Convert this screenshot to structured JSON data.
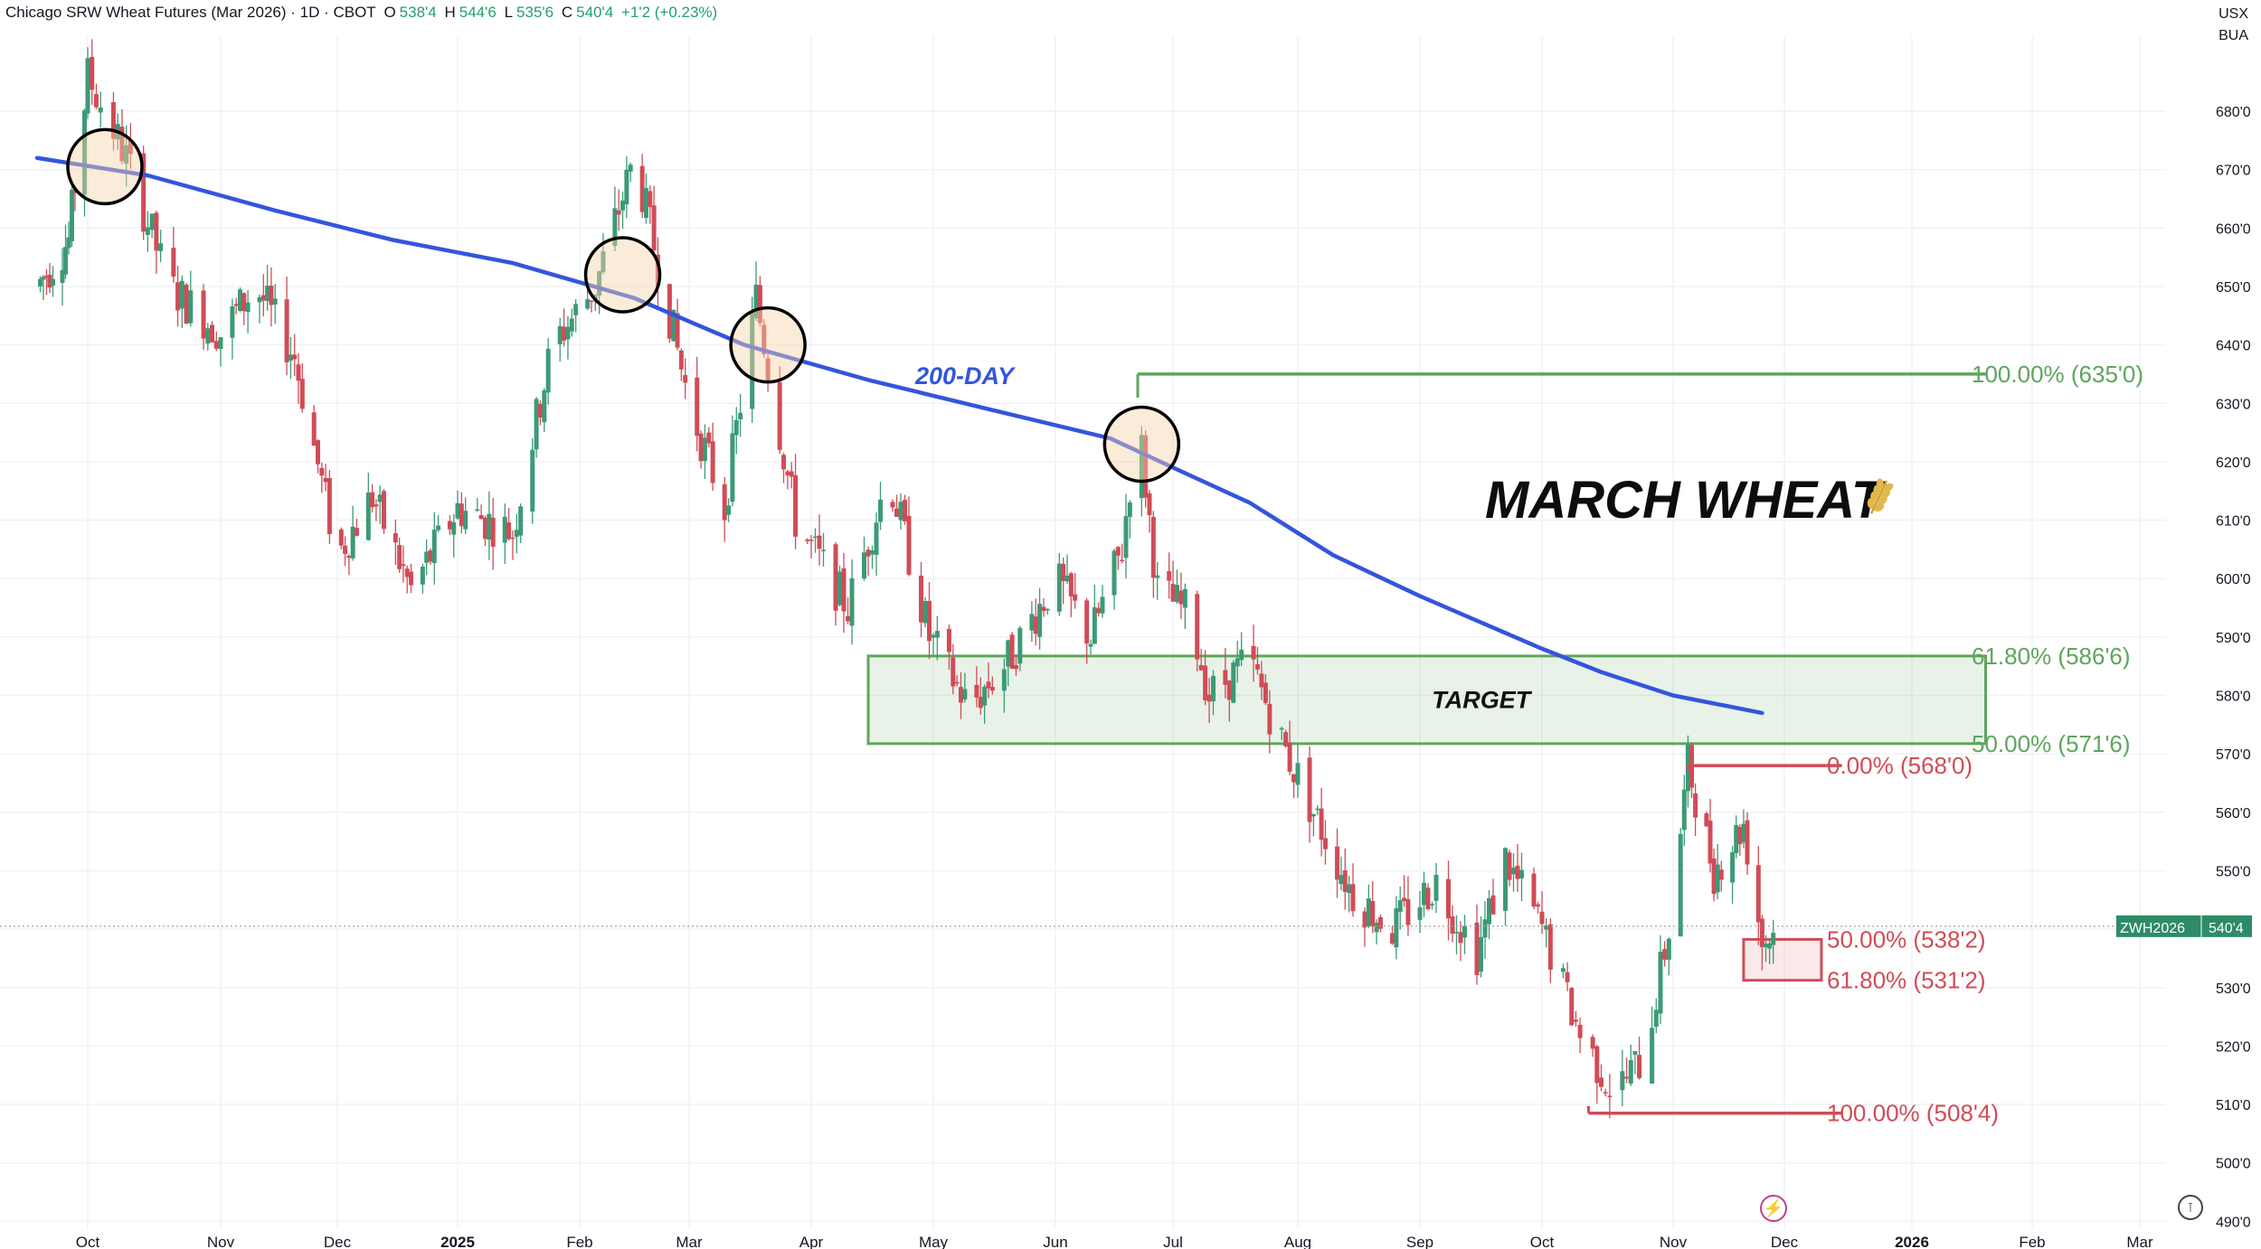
{
  "header": {
    "title": "Chicago SRW Wheat Futures (Mar 2026) · 1D · CBOT",
    "open_label": "O",
    "open": "538'4",
    "high_label": "H",
    "high": "544'6",
    "low_label": "L",
    "low": "535'6",
    "close_label": "C",
    "close": "540'4",
    "change": "+1'2 (+0.23%)"
  },
  "top_right": {
    "unit": "USX",
    "unit2": "BUA"
  },
  "price_tag": {
    "symbol": "ZWH2026",
    "price": "540'4"
  },
  "icons": {
    "bottom_center": "flash-icon",
    "bottom_right": "currency-icon"
  },
  "chart_data": {
    "type": "candlestick",
    "y_tick_labels": [
      "680'0",
      "670'0",
      "660'0",
      "650'0",
      "640'0",
      "630'0",
      "620'0",
      "610'0",
      "600'0",
      "590'0",
      "580'0",
      "570'0",
      "560'0",
      "550'0",
      "540'0",
      "530'0",
      "520'0",
      "510'0",
      "500'0",
      "490'0"
    ],
    "y_ticks": [
      680,
      670,
      660,
      650,
      640,
      630,
      620,
      610,
      600,
      590,
      580,
      570,
      560,
      550,
      540,
      530,
      520,
      510,
      500,
      490
    ],
    "ylim": [
      490,
      690
    ],
    "x_tick_labels": [
      "Oct",
      "Nov",
      "Dec",
      "2025",
      "Feb",
      "Mar",
      "Apr",
      "May",
      "Jun",
      "Jul",
      "Aug",
      "Sep",
      "Oct",
      "Nov",
      "Dec",
      "2026",
      "Feb",
      "Mar"
    ],
    "x_tick_dates": [
      "2024-10-01",
      "2024-11-01",
      "2024-12-01",
      "2025-01-01",
      "2025-02-01",
      "2025-03-01",
      "2025-04-01",
      "2025-05-01",
      "2025-06-01",
      "2025-07-01",
      "2025-08-01",
      "2025-09-01",
      "2025-10-01",
      "2025-11-01",
      "2025-12-01",
      "2026-01-01",
      "2026-02-01",
      "2026-03-01"
    ],
    "bold_x_ticks": [
      "2025",
      "2026"
    ],
    "last_price": 540.5,
    "ma200_label": "200-DAY",
    "ma200_color": "#3355dd",
    "ma200": [
      [
        "2024-09-15",
        672
      ],
      [
        "2024-10-15",
        669
      ],
      [
        "2024-11-15",
        663
      ],
      [
        "2024-12-15",
        658
      ],
      [
        "2025-01-15",
        654
      ],
      [
        "2025-02-15",
        648
      ],
      [
        "2025-03-15",
        640
      ],
      [
        "2025-04-15",
        634
      ],
      [
        "2025-05-15",
        629
      ],
      [
        "2025-06-15",
        624
      ],
      [
        "2025-07-01",
        619
      ],
      [
        "2025-07-20",
        613
      ],
      [
        "2025-08-10",
        604
      ],
      [
        "2025-09-01",
        597
      ],
      [
        "2025-10-01",
        588
      ],
      [
        "2025-10-15",
        584
      ],
      [
        "2025-11-01",
        580
      ],
      [
        "2025-11-25",
        577
      ]
    ],
    "candles_ohlc_pivots": [
      [
        "2024-09-15",
        650
      ],
      [
        "2024-09-25",
        658
      ],
      [
        "2024-10-01",
        686
      ],
      [
        "2024-10-10",
        672
      ],
      [
        "2024-10-20",
        650
      ],
      [
        "2024-11-01",
        642
      ],
      [
        "2024-11-10",
        650
      ],
      [
        "2024-11-20",
        638
      ],
      [
        "2024-12-01",
        604
      ],
      [
        "2024-12-10",
        614
      ],
      [
        "2024-12-20",
        598
      ],
      [
        "2025-01-01",
        612
      ],
      [
        "2025-01-15",
        608
      ],
      [
        "2025-01-25",
        640
      ],
      [
        "2025-02-05",
        650
      ],
      [
        "2025-02-15",
        672
      ],
      [
        "2025-03-01",
        630
      ],
      [
        "2025-03-10",
        612
      ],
      [
        "2025-03-18",
        648
      ],
      [
        "2025-03-28",
        610
      ],
      [
        "2025-04-10",
        595
      ],
      [
        "2025-04-20",
        618
      ],
      [
        "2025-04-30",
        590
      ],
      [
        "2025-05-10",
        578
      ],
      [
        "2025-05-20",
        586
      ],
      [
        "2025-06-01",
        600
      ],
      [
        "2025-06-10",
        590
      ],
      [
        "2025-06-18",
        605
      ],
      [
        "2025-06-22",
        628
      ],
      [
        "2025-06-27",
        598
      ],
      [
        "2025-07-05",
        594
      ],
      [
        "2025-07-10",
        580
      ],
      [
        "2025-07-20",
        586
      ],
      [
        "2025-07-28",
        572
      ],
      [
        "2025-08-05",
        560
      ],
      [
        "2025-08-15",
        546
      ],
      [
        "2025-08-25",
        540
      ],
      [
        "2025-09-05",
        548
      ],
      [
        "2025-09-15",
        536
      ],
      [
        "2025-09-22",
        552
      ],
      [
        "2025-10-01",
        540
      ],
      [
        "2025-10-10",
        522
      ],
      [
        "2025-10-18",
        512
      ],
      [
        "2025-10-25",
        518
      ],
      [
        "2025-10-31",
        540
      ],
      [
        "2025-11-05",
        568
      ],
      [
        "2025-11-12",
        550
      ],
      [
        "2025-11-20",
        558
      ],
      [
        "2025-11-25",
        538
      ],
      [
        "2025-11-30",
        540
      ]
    ],
    "circles": [
      "2024-10-05",
      "2025-02-12",
      "2025-03-21",
      "2025-06-23"
    ],
    "levels": [
      {
        "label": "100.00% (635'0)",
        "value": 635,
        "color": "#5ea65e",
        "from": "2025-06-22",
        "to": "2026-01-20"
      },
      {
        "label": "61.80% (586'6)",
        "value": 586.75,
        "color": "#5ea65e"
      },
      {
        "label": "50.00% (571'6)",
        "value": 571.75,
        "color": "#5ea65e"
      },
      {
        "label": "0.00% (568'0)",
        "value": 568,
        "color": "#d04c57",
        "from": "2025-11-05",
        "to": "2025-12-15"
      },
      {
        "label": "50.00% (538'2)",
        "value": 538.25,
        "color": "#d04c57"
      },
      {
        "label": "61.80% (531'2)",
        "value": 531.25,
        "color": "#d04c57"
      },
      {
        "label": "100.00% (508'4)",
        "value": 508.5,
        "color": "#d04c57",
        "from": "2025-10-12",
        "to": "2025-12-15"
      }
    ],
    "target_zone": {
      "label": "TARGET",
      "from": "2025-04-15",
      "to": "2026-01-20",
      "low": 571.75,
      "high": 586.75
    },
    "red_zone": {
      "from": "2025-11-20",
      "to": "2025-12-10",
      "low": 531.25,
      "high": 538.25
    },
    "annotation": "MARCH WHEAT"
  }
}
